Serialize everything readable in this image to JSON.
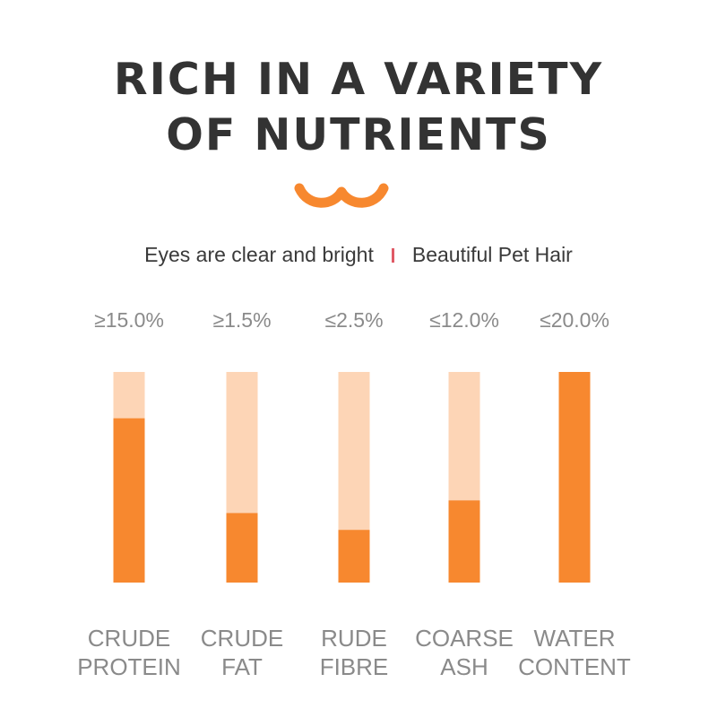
{
  "header": {
    "title_line1": "RICH IN A VARIETY",
    "title_line2": "OF NUTRIENTS",
    "subtitle_left": "Eyes are clear and bright",
    "subtitle_right": "Beautiful Pet Hair"
  },
  "colors": {
    "bar_fill": "#f7882f",
    "bar_track": "#fdd5b6",
    "accent": "#f7882f",
    "separator": "#e05a66",
    "title": "#333333",
    "label": "#8a8a8a"
  },
  "chart_data": {
    "type": "bar",
    "title": "",
    "xlabel": "",
    "ylabel": "",
    "categories": [
      [
        "CRUDE",
        "PROTEIN"
      ],
      [
        "CRUDE",
        "FAT"
      ],
      [
        "RUDE",
        "FIBRE"
      ],
      [
        "COARSE",
        "ASH"
      ],
      [
        "WATER",
        "CONTENT"
      ]
    ],
    "value_labels": [
      "≥15.0%",
      "≥1.5%",
      "≤2.5%",
      "≤12.0%",
      "≤20.0%"
    ],
    "values": [
      0.78,
      0.33,
      0.25,
      0.39,
      1.0
    ],
    "ylim": [
      0,
      1
    ],
    "grid": false,
    "legend": "none"
  }
}
